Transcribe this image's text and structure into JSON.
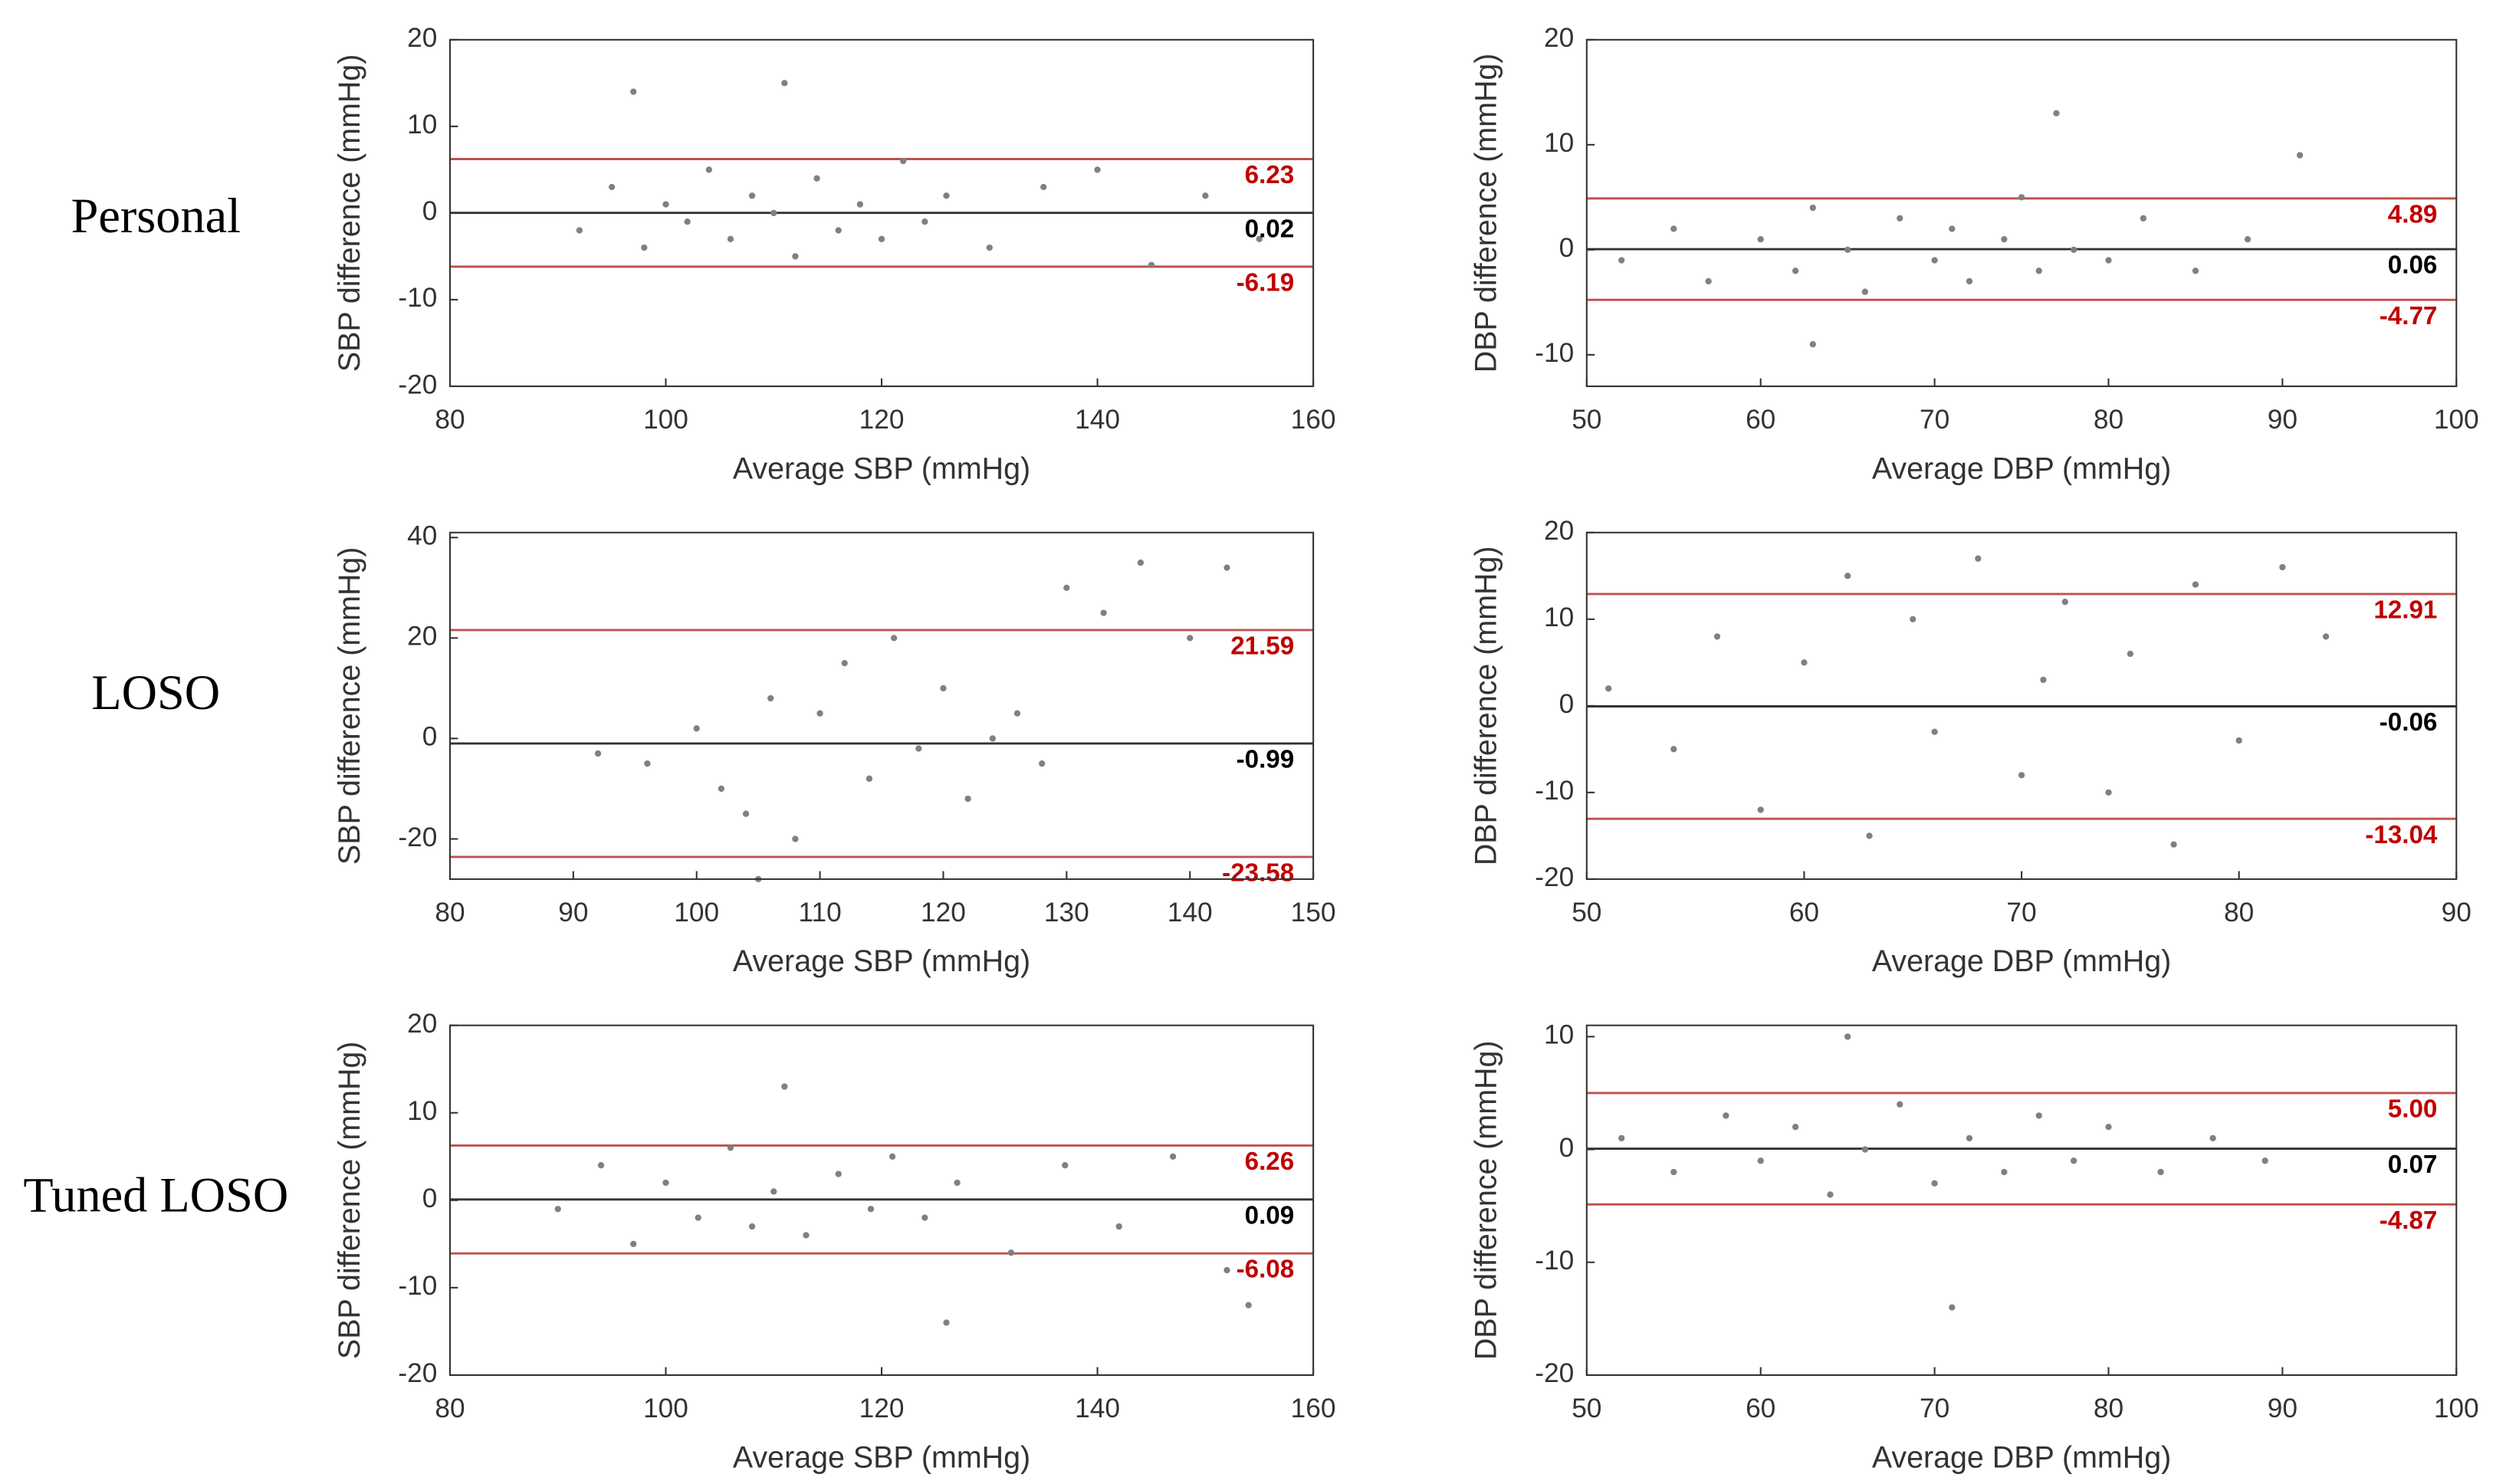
{
  "row_labels": [
    "Personal",
    "LOSO",
    "Tuned LOSO"
  ],
  "chart_data": [
    {
      "type": "scatter",
      "x_label": "Average SBP (mmHg)",
      "y_label": "SBP difference (mmHg)",
      "color": "#808080",
      "xlim": [
        80,
        160
      ],
      "xticks": [
        80,
        100,
        120,
        140,
        160
      ],
      "ylim": [
        -20,
        20
      ],
      "yticks": [
        -20,
        -10,
        0,
        10,
        20
      ],
      "x": [
        92,
        95,
        98,
        100,
        102,
        104,
        106,
        108,
        110,
        112,
        114,
        116,
        118,
        120,
        122,
        124,
        126,
        130,
        135,
        140,
        145,
        150,
        155,
        111,
        97
      ],
      "y": [
        -2,
        3,
        -4,
        1,
        -1,
        5,
        -3,
        2,
        0,
        -5,
        4,
        -2,
        1,
        -3,
        6,
        -1,
        2,
        -4,
        3,
        5,
        -6,
        2,
        -3,
        15,
        14
      ],
      "lines": [
        {
          "value": 6.23,
          "color": "#c0504d"
        },
        {
          "value": 0.02,
          "color": "#333333"
        },
        {
          "value": -6.19,
          "color": "#c0504d"
        }
      ]
    },
    {
      "type": "scatter",
      "x_label": "Average DBP (mmHg)",
      "y_label": "DBP difference (mmHg)",
      "color": "#808080",
      "xlim": [
        50,
        100
      ],
      "xticks": [
        50,
        60,
        70,
        80,
        90,
        100
      ],
      "ylim": [
        -13,
        20
      ],
      "yticks": [
        -10,
        0,
        10,
        20
      ],
      "x": [
        52,
        55,
        57,
        60,
        62,
        63,
        65,
        66,
        68,
        70,
        71,
        72,
        74,
        75,
        76,
        78,
        80,
        82,
        85,
        88,
        91,
        77,
        63
      ],
      "y": [
        -1,
        2,
        -3,
        1,
        -2,
        4,
        0,
        -4,
        3,
        -1,
        2,
        -3,
        1,
        5,
        -2,
        0,
        -1,
        3,
        -2,
        1,
        9,
        13,
        -9
      ],
      "lines": [
        {
          "value": 4.89,
          "color": "#c0504d"
        },
        {
          "value": 0.06,
          "color": "#333333"
        },
        {
          "value": -4.77,
          "color": "#c0504d"
        }
      ]
    },
    {
      "type": "scatter",
      "x_label": "Average SBP (mmHg)",
      "y_label": "SBP difference (mmHg)",
      "color": "#808080",
      "xlim": [
        80,
        150
      ],
      "xticks": [
        80,
        90,
        100,
        110,
        120,
        130,
        140,
        150
      ],
      "ylim": [
        -28,
        41
      ],
      "yticks": [
        -20,
        0,
        20,
        40
      ],
      "x": [
        92,
        96,
        100,
        102,
        104,
        106,
        108,
        110,
        112,
        114,
        116,
        118,
        120,
        122,
        124,
        126,
        128,
        130,
        133,
        136,
        140,
        143,
        105
      ],
      "y": [
        -3,
        -5,
        2,
        -10,
        -15,
        8,
        -20,
        5,
        15,
        -8,
        20,
        -2,
        10,
        -12,
        0,
        5,
        -5,
        30,
        25,
        35,
        20,
        34,
        -28
      ],
      "lines": [
        {
          "value": 21.59,
          "color": "#c0504d"
        },
        {
          "value": -0.99,
          "color": "#333333"
        },
        {
          "value": -23.58,
          "color": "#c0504d"
        }
      ]
    },
    {
      "type": "scatter",
      "x_label": "Average DBP (mmHg)",
      "y_label": "DBP difference (mmHg)",
      "color": "#808080",
      "xlim": [
        50,
        90
      ],
      "xticks": [
        50,
        60,
        70,
        80,
        90
      ],
      "ylim": [
        -20,
        20
      ],
      "yticks": [
        -20,
        -10,
        0,
        10,
        20
      ],
      "x": [
        51,
        54,
        56,
        58,
        60,
        62,
        63,
        65,
        66,
        68,
        70,
        71,
        72,
        74,
        75,
        77,
        78,
        80,
        82,
        84
      ],
      "y": [
        2,
        -5,
        8,
        -12,
        5,
        15,
        -15,
        10,
        -3,
        17,
        -8,
        3,
        12,
        -10,
        6,
        -16,
        14,
        -4,
        16,
        8
      ],
      "lines": [
        {
          "value": 12.91,
          "color": "#c0504d"
        },
        {
          "value": -0.06,
          "color": "#333333"
        },
        {
          "value": -13.04,
          "color": "#c0504d"
        }
      ]
    },
    {
      "type": "scatter",
      "x_label": "Average SBP (mmHg)",
      "y_label": "SBP difference (mmHg)",
      "color": "#808080",
      "xlim": [
        80,
        160
      ],
      "xticks": [
        80,
        100,
        120,
        140,
        160
      ],
      "ylim": [
        -20,
        20
      ],
      "yticks": [
        -20,
        -10,
        0,
        10,
        20
      ],
      "x": [
        90,
        94,
        97,
        100,
        103,
        106,
        108,
        110,
        113,
        116,
        119,
        121,
        124,
        127,
        132,
        137,
        142,
        147,
        152,
        154,
        111,
        126
      ],
      "y": [
        -1,
        4,
        -5,
        2,
        -2,
        6,
        -3,
        1,
        -4,
        3,
        -1,
        5,
        -2,
        2,
        -6,
        4,
        -3,
        5,
        -8,
        -12,
        13,
        -14
      ],
      "lines": [
        {
          "value": 6.26,
          "color": "#c0504d"
        },
        {
          "value": 0.09,
          "color": "#333333"
        },
        {
          "value": -6.08,
          "color": "#c0504d"
        }
      ]
    },
    {
      "type": "scatter",
      "x_label": "Average DBP (mmHg)",
      "y_label": "DBP difference (mmHg)",
      "color": "#808080",
      "xlim": [
        50,
        100
      ],
      "xticks": [
        50,
        60,
        70,
        80,
        90,
        100
      ],
      "ylim": [
        -20,
        11
      ],
      "yticks": [
        -20,
        -10,
        0,
        10
      ],
      "x": [
        52,
        55,
        58,
        60,
        62,
        64,
        66,
        68,
        70,
        72,
        74,
        76,
        78,
        80,
        83,
        86,
        89,
        71,
        65
      ],
      "y": [
        1,
        -2,
        3,
        -1,
        2,
        -4,
        0,
        4,
        -3,
        1,
        -2,
        3,
        -1,
        2,
        -2,
        1,
        -1,
        -14,
        10
      ],
      "lines": [
        {
          "value": 5,
          "label": "5.00",
          "color": "#c0504d"
        },
        {
          "value": 0.07,
          "color": "#333333"
        },
        {
          "value": -4.87,
          "color": "#c0504d"
        }
      ]
    }
  ]
}
